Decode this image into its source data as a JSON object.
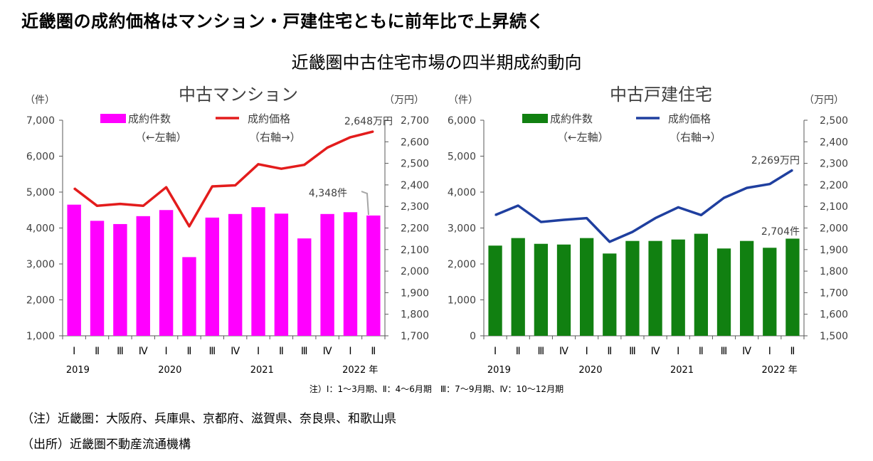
{
  "headline": "近畿圏の成約価格はマンション・戸建住宅ともに前年比で上昇続く",
  "subtitle": "近畿圏中古住宅市場の四半期成約動向",
  "note": "注）Ⅰ：1～3月期、Ⅱ：4～6月期　Ⅲ：7～9月期、Ⅳ：10～12月期",
  "footnotes": [
    "（注）近畿圏：大阪府、兵庫県、京都府、滋賀県、奈良県、和歌山県",
    "（出所）近畿圏不動産流通機構"
  ],
  "chart_data": [
    {
      "id": "mansion",
      "type": "bar+line",
      "title": "中古マンション",
      "left_unit": "（件）",
      "right_unit": "（万円）",
      "categories": [
        "Ⅰ",
        "Ⅱ",
        "Ⅲ",
        "Ⅳ",
        "Ⅰ",
        "Ⅱ",
        "Ⅲ",
        "Ⅳ",
        "Ⅰ",
        "Ⅱ",
        "Ⅲ",
        "Ⅳ",
        "Ⅰ",
        "Ⅱ"
      ],
      "years": [
        {
          "label": "2019",
          "index": 0
        },
        {
          "label": "2020",
          "index": 4
        },
        {
          "label": "2021",
          "index": 8
        },
        {
          "label": "2022 年",
          "index": 12
        }
      ],
      "bar_series": {
        "name": "成約件数",
        "axis_note": "（←左軸）",
        "color": "#ff00ff",
        "values": [
          4650,
          4200,
          4110,
          4330,
          4500,
          3190,
          4290,
          4390,
          4580,
          4400,
          3710,
          4390,
          4440,
          4348
        ]
      },
      "line_series": {
        "name": "成約価格",
        "axis_note": "（右軸→）",
        "color": "#e31c1c",
        "values": [
          2384,
          2303,
          2312,
          2303,
          2389,
          2208,
          2393,
          2398,
          2496,
          2475,
          2493,
          2573,
          2621,
          2648
        ]
      },
      "left_axis": {
        "min": 1000,
        "max": 7000,
        "step": 1000,
        "tick_labels": [
          "1,000",
          "2,000",
          "3,000",
          "4,000",
          "5,000",
          "6,000",
          "7,000"
        ]
      },
      "right_axis": {
        "min": 1700,
        "max": 2700,
        "step": 100,
        "tick_labels": [
          "1,700",
          "1,800",
          "1,900",
          "2,000",
          "2,100",
          "2,200",
          "2,300",
          "2,400",
          "2,500",
          "2,600",
          "2,700"
        ]
      },
      "line_label": "2,648万円",
      "bar_label": "4,348件"
    },
    {
      "id": "house",
      "type": "bar+line",
      "title": "中古戸建住宅",
      "left_unit": "（件）",
      "right_unit": "（万円）",
      "categories": [
        "Ⅰ",
        "Ⅱ",
        "Ⅲ",
        "Ⅳ",
        "Ⅰ",
        "Ⅱ",
        "Ⅲ",
        "Ⅳ",
        "Ⅰ",
        "Ⅱ",
        "Ⅲ",
        "Ⅳ",
        "Ⅰ",
        "Ⅱ"
      ],
      "years": [
        {
          "label": "2019",
          "index": 0
        },
        {
          "label": "2020",
          "index": 4
        },
        {
          "label": "2021",
          "index": 8
        },
        {
          "label": "2022 年",
          "index": 12
        }
      ],
      "bar_series": {
        "name": "成約件数",
        "axis_note": "（←左軸）",
        "color": "#118011",
        "values": [
          2510,
          2720,
          2560,
          2540,
          2720,
          2290,
          2640,
          2640,
          2680,
          2840,
          2430,
          2640,
          2450,
          2704
        ]
      },
      "line_series": {
        "name": "成約価格",
        "axis_note": "（右軸→）",
        "color": "#1f3f9f",
        "values": [
          2060,
          2104,
          2028,
          2038,
          2046,
          1936,
          1982,
          2046,
          2096,
          2060,
          2140,
          2186,
          2204,
          2269
        ]
      },
      "left_axis": {
        "min": 0,
        "max": 6000,
        "step": 1000,
        "tick_labels": [
          "0",
          "1,000",
          "2,000",
          "3,000",
          "4,000",
          "5,000",
          "6,000"
        ]
      },
      "right_axis": {
        "min": 1500,
        "max": 2500,
        "step": 100,
        "tick_labels": [
          "1,500",
          "1,600",
          "1,700",
          "1,800",
          "1,900",
          "2,000",
          "2,100",
          "2,200",
          "2,300",
          "2,400",
          "2,500"
        ]
      },
      "line_label": "2,269万円",
      "bar_label": "2,704件"
    }
  ]
}
